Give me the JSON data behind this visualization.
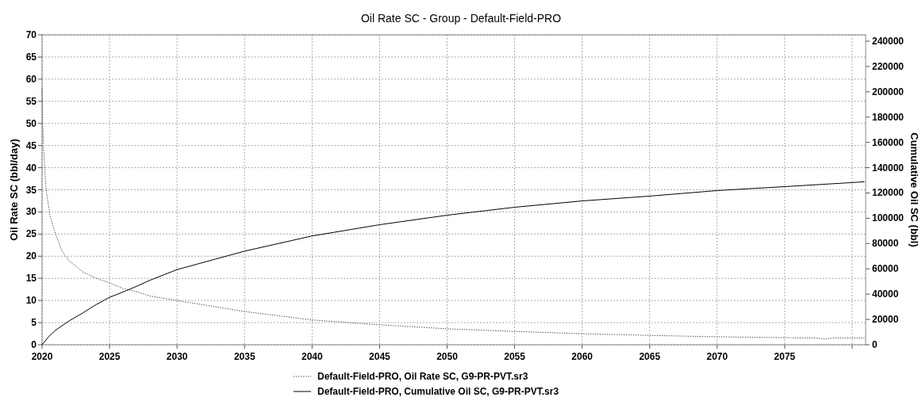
{
  "chart_data": {
    "type": "line",
    "title": "Oil Rate SC - Group - Default-Field-PRO",
    "ylabel": "Oil Rate SC (bbl/day)",
    "y2label": "Cumulative Oil SC (bbl)",
    "xlim": [
      2020,
      2081
    ],
    "xticks": [
      2020,
      2025,
      2030,
      2035,
      2040,
      2045,
      2050,
      2055,
      2060,
      2065,
      2070,
      2075,
      {
        "value": 2080,
        "label": null
      }
    ],
    "ylim": [
      0,
      70
    ],
    "yticks": [
      0,
      5,
      10,
      15,
      20,
      25,
      30,
      35,
      40,
      45,
      50,
      55,
      60,
      65,
      70
    ],
    "y2lim": [
      0,
      245000
    ],
    "y2ticks": [
      0,
      20000,
      40000,
      60000,
      80000,
      100000,
      120000,
      140000,
      160000,
      180000,
      200000,
      220000,
      240000
    ],
    "grid": true,
    "legend": "bottom",
    "series": [
      {
        "name": "Default-Field-PRO, Oil Rate SC, G9-PR-PVT.sr3",
        "color": "#555555",
        "line_style": "dotted",
        "x": [
          2020,
          2020.05,
          2020.1,
          2020.3,
          2020.6,
          2021,
          2021.5,
          2022,
          2023,
          2024,
          2025,
          2026,
          2027,
          2028,
          2030,
          2032,
          2035,
          2040,
          2045,
          2050,
          2055,
          2060,
          2065,
          2070,
          2075,
          2077.5,
          2078,
          2078.5,
          2080.9
        ],
        "values": [
          58,
          50,
          45,
          35,
          29,
          25,
          21,
          19,
          16.5,
          15,
          14,
          12.7,
          12,
          11,
          10,
          9,
          7.5,
          5.6,
          4.5,
          3.6,
          3,
          2.5,
          2.1,
          1.8,
          1.6,
          1.5,
          1.3,
          1.5,
          1.5
        ]
      },
      {
        "name": "Default-Field-PRO, Cumulative Oil SC, G9-PR-PVT.sr3",
        "color": "#000000",
        "line_style": "solid",
        "axis": "y2",
        "x": [
          2020,
          2020.5,
          2021,
          2022,
          2023,
          2024,
          2025,
          2026,
          2027,
          2028,
          2030,
          2035,
          2040,
          2045,
          2050,
          2055,
          2060,
          2065,
          2070,
          2075,
          2080.9
        ],
        "values": [
          0,
          6500,
          11500,
          18800,
          25000,
          31700,
          37500,
          41700,
          46200,
          51000,
          59400,
          74000,
          86000,
          94900,
          102400,
          108700,
          113700,
          117500,
          121900,
          125000,
          128800
        ]
      }
    ]
  }
}
